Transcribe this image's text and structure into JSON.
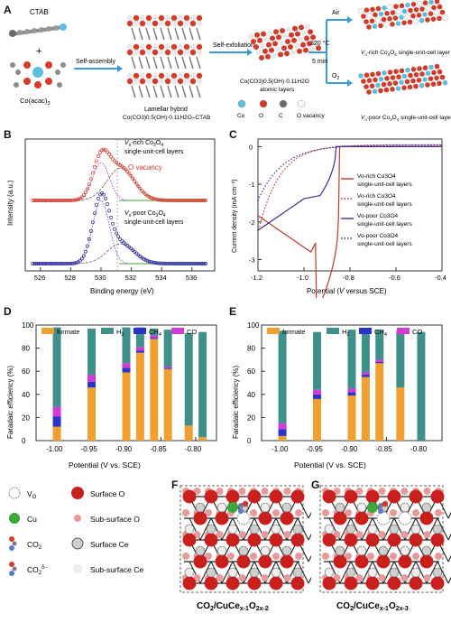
{
  "panel_letters": [
    "A",
    "B",
    "C",
    "D",
    "E",
    "F",
    "G"
  ],
  "panelA": {
    "ctab": "CTAB",
    "plus": "+",
    "co_acac": "Co(acac)",
    "co_acac_sub": "3",
    "self_assembly": "Self-assembly",
    "lamellar_title": "Lamellar hybrid",
    "lamellar_formula": "Co(CO3)0.5(OH)·0.11H2O–CTAB",
    "self_exfoliation": "Self-exfoliation",
    "atomic_formula": "Co(CO3)0.5(OH)·0.11H2O",
    "atomic_layers": "atomic layers",
    "temp": "320 °C",
    "time": "5 min",
    "air": "Air",
    "o2": "O2",
    "vo_rich_layer": "Vo-rich Co3O4 single-unit-cell layer",
    "vo_poor_layer": "Vo-poor Co3O4 single-unit-cell layer",
    "legend": [
      "Co",
      "O",
      "C",
      "O vacancy"
    ],
    "legend_colors": [
      "#5bc0de",
      "#d43a2a",
      "#6b6b6b",
      "#ffffff"
    ]
  },
  "panelB": {
    "xlabel": "Binding energy (eV)",
    "ylabel": "Intensity",
    "yunit": "(a.u.)",
    "xticks": [
      "526",
      "528",
      "530",
      "532",
      "534",
      "536"
    ],
    "label_rich": "Vo-rich Co3O4",
    "label_rich2": "single-unit-cell layers",
    "label_vacancy": "O vacancy",
    "label_poor": "Vo-poor Co3O4",
    "label_poor2": "single-unit-cell layers",
    "colors": {
      "rich": "#d43a2a",
      "poor": "#2b2b9e",
      "vacancy": "#d43a2a",
      "lattice": "#8b2fc9",
      "other": "#3aa83a"
    }
  },
  "panelC": {
    "xlabel": "Potential (V versus SCE)",
    "ylabel": "Current density (mA cm⁻²)",
    "xticks": [
      "-1.2",
      "-1.0",
      "-0.8",
      "-0.6",
      "-0.4"
    ],
    "yticks": [
      "0",
      "-1",
      "-2",
      "-3"
    ],
    "legend": [
      {
        "name": "Vo-rich Co3O4 single-unit-cell layers",
        "color": "#c0392b",
        "style": "solid"
      },
      {
        "name": "Vo-rich Co3O4 single-unit-cell layers",
        "color": "#c0392b",
        "style": "dotted"
      },
      {
        "name": "Vo-poor Co3O4 single-unit-cell layers",
        "color": "#3a2f9e",
        "style": "solid"
      },
      {
        "name": "Vo-poor Co3O4 single-unit-cell layers",
        "color": "#3a2f9e",
        "style": "dotted"
      }
    ]
  },
  "panelD": {
    "ylabel": "Faradaic efficiency (%)",
    "xlabel": "Potential (V vs. SCE)",
    "xticks": [
      "-1.00",
      "-0.95",
      "-0.90",
      "-0.85",
      "-0.80"
    ],
    "yticks": [
      "0",
      "20",
      "40",
      "60",
      "80",
      "100"
    ],
    "legend": [
      "formate",
      "H2",
      "CH4",
      "CO"
    ],
    "colors": {
      "formate": "#f0a030",
      "H2": "#3f8f8a",
      "CH4": "#2a34c8",
      "CO": "#d43ad4"
    },
    "bars": [
      {
        "x": -1.0,
        "formate": 12,
        "CH4": 9,
        "CO": 8,
        "H2": 69
      },
      {
        "x": -0.95,
        "formate": 46,
        "CH4": 5,
        "CO": 6,
        "H2": 40
      },
      {
        "x": -0.9,
        "formate": 59,
        "CH4": 4,
        "CO": 4,
        "H2": 31
      },
      {
        "x": -0.88,
        "formate": 76,
        "CH4": 2,
        "CO": 3,
        "H2": 17
      },
      {
        "x": -0.86,
        "formate": 88,
        "CH4": 1,
        "CO": 2,
        "H2": 6
      },
      {
        "x": -0.84,
        "formate": 62,
        "CH4": 1,
        "CO": 1,
        "H2": 32
      },
      {
        "x": -0.81,
        "formate": 13,
        "CH4": 0,
        "CO": 0,
        "H2": 80
      },
      {
        "x": -0.79,
        "formate": 3,
        "CH4": 0,
        "CO": 0,
        "H2": 91
      }
    ]
  },
  "panelE": {
    "ylabel": "Faradaic efficiency (%)",
    "xlabel": "Potential (V vs. SCE)",
    "xticks": [
      "-1.00",
      "-0.95",
      "-0.90",
      "-0.85",
      "-0.80"
    ],
    "yticks": [
      "0",
      "20",
      "40",
      "60",
      "80",
      "100"
    ],
    "legend": [
      "formate",
      "H2",
      "CH4",
      "CO"
    ],
    "bars": [
      {
        "x": -1.0,
        "formate": 4,
        "CH4": 6,
        "CO": 5,
        "H2": 80
      },
      {
        "x": -0.95,
        "formate": 36,
        "CH4": 4,
        "CO": 4,
        "H2": 50
      },
      {
        "x": -0.9,
        "formate": 39,
        "CH4": 3,
        "CO": 3,
        "H2": 51
      },
      {
        "x": -0.88,
        "formate": 55,
        "CH4": 2,
        "CO": 2,
        "H2": 37
      },
      {
        "x": -0.86,
        "formate": 67,
        "CH4": 1,
        "CO": 2,
        "H2": 26
      },
      {
        "x": -0.83,
        "formate": 46,
        "CH4": 0,
        "CO": 0,
        "H2": 49
      },
      {
        "x": -0.8,
        "formate": 0,
        "CH4": 0,
        "CO": 0,
        "H2": 94
      }
    ]
  },
  "panelFG_legend": [
    {
      "label": "Vo",
      "kind": "vo"
    },
    {
      "label": "Surface O",
      "kind": "surfO"
    },
    {
      "label": "Cu",
      "kind": "cu"
    },
    {
      "label": "Sub-surface O",
      "kind": "subO"
    },
    {
      "label": "CO2",
      "kind": "co2"
    },
    {
      "label": "Surface Ce",
      "kind": "surfCe"
    },
    {
      "label": "CO2δ-",
      "kind": "co2d"
    },
    {
      "label": "Sub-surface Ce",
      "kind": "subCe"
    }
  ],
  "panelF": {
    "caption": "CO2/CuCex-1O2x-2"
  },
  "panelG": {
    "caption": "CO2/CuCex-1O2x-3"
  }
}
